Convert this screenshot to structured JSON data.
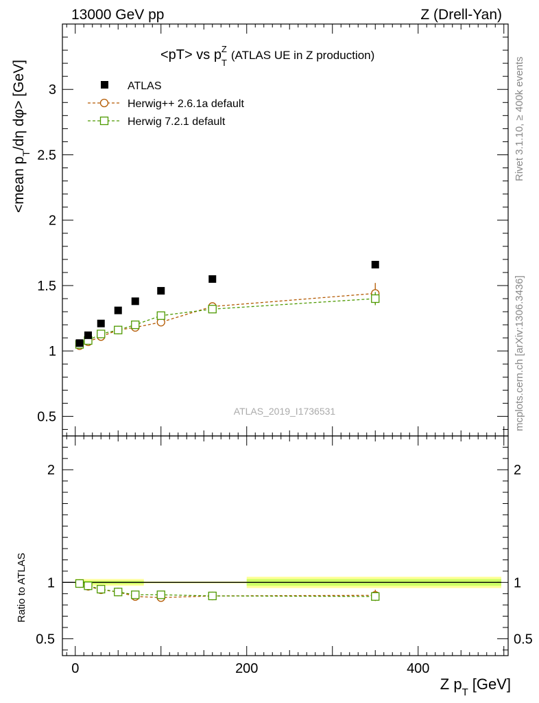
{
  "header": {
    "energy": "13000 GeV pp",
    "process": "Z (Drell-Yan)"
  },
  "side_labels": {
    "rivet": "Rivet 3.1.10, ≥ 400k events",
    "mcplots": "mcplots.cern.ch [arXiv:1306.3436]"
  },
  "watermark": "ATLAS_2019_I1736531",
  "colors": {
    "data": "#000000",
    "herwigpp": "#b35900",
    "herwig7": "#4d9900",
    "band_inner": "#ccff66",
    "band_outer": "#ffff99"
  },
  "chart_data": [
    {
      "panel": "main",
      "type": "scatter",
      "title": {
        "prefix": "<pT> vs p",
        "sub": "T",
        "sup": "Z",
        "suffix": "(ATLAS UE in Z production)"
      },
      "ylabel": {
        "prefix": "<mean p",
        "sub": "T",
        "suffix": "/dη dφ> [GeV]"
      },
      "xlim": [
        -15,
        505
      ],
      "ylim": [
        0.35,
        3.5
      ],
      "yticks": [
        0.5,
        1,
        1.5,
        2,
        2.5,
        3
      ],
      "ytick_labels": [
        "0.5",
        "1",
        "1.5",
        "2",
        "2.5",
        "3"
      ],
      "x": [
        5,
        15,
        30,
        50,
        70,
        100,
        160,
        350
      ],
      "series": [
        {
          "name": "ATLAS",
          "marker": "filled-square",
          "values": [
            1.06,
            1.12,
            1.21,
            1.31,
            1.38,
            1.46,
            1.55,
            1.66
          ],
          "errors": [
            0.01,
            0.01,
            0.01,
            0.01,
            0.01,
            0.01,
            0.01,
            0.01
          ]
        },
        {
          "name": "Herwig++ 2.6.1a default",
          "marker": "open-circle",
          "values": [
            1.04,
            1.07,
            1.11,
            1.16,
            1.18,
            1.22,
            1.34,
            1.44
          ],
          "errors": [
            0.01,
            0.01,
            0.01,
            0.01,
            0.01,
            0.01,
            0.02,
            0.08
          ]
        },
        {
          "name": "Herwig 7.2.1 default",
          "marker": "open-square",
          "values": [
            1.05,
            1.08,
            1.13,
            1.16,
            1.2,
            1.27,
            1.32,
            1.4
          ],
          "errors": [
            0.01,
            0.01,
            0.01,
            0.01,
            0.01,
            0.01,
            0.02,
            0.05
          ]
        }
      ]
    },
    {
      "panel": "ratio",
      "type": "scatter",
      "ylabel": "Ratio to ATLAS",
      "xlabel": {
        "prefix": "Z p",
        "sub": "T",
        "suffix": "[GeV]"
      },
      "xlim": [
        -15,
        505
      ],
      "ylim": [
        0.35,
        2.3
      ],
      "yticks": [
        0.5,
        1,
        2
      ],
      "ytick_labels": [
        "0.5",
        "1",
        "2"
      ],
      "xticks": [
        0,
        200,
        400
      ],
      "xtick_labels": [
        "0",
        "200",
        "400"
      ],
      "reference": 1,
      "band": [
        {
          "x0": 0,
          "x1": 80,
          "inner": 0.015,
          "outer": 0.03
        },
        {
          "x0": 80,
          "x1": 200,
          "inner": 0.005,
          "outer": 0.008
        },
        {
          "x0": 200,
          "x1": 500,
          "inner": 0.03,
          "outer": 0.05
        }
      ],
      "x": [
        5,
        15,
        30,
        50,
        70,
        100,
        160,
        350
      ],
      "series": [
        {
          "name": "Herwig++ 2.6.1a default",
          "marker": "open-circle",
          "values": [
            0.99,
            0.965,
            0.935,
            0.915,
            0.875,
            0.865,
            0.88,
            0.885
          ],
          "errors": [
            0.01,
            0.01,
            0.01,
            0.01,
            0.01,
            0.01,
            0.01,
            0.05
          ]
        },
        {
          "name": "Herwig 7.2.1 default",
          "marker": "open-square",
          "values": [
            0.99,
            0.97,
            0.94,
            0.915,
            0.89,
            0.89,
            0.88,
            0.875
          ],
          "errors": [
            0.01,
            0.01,
            0.01,
            0.01,
            0.01,
            0.01,
            0.01,
            0.03
          ]
        }
      ]
    }
  ]
}
